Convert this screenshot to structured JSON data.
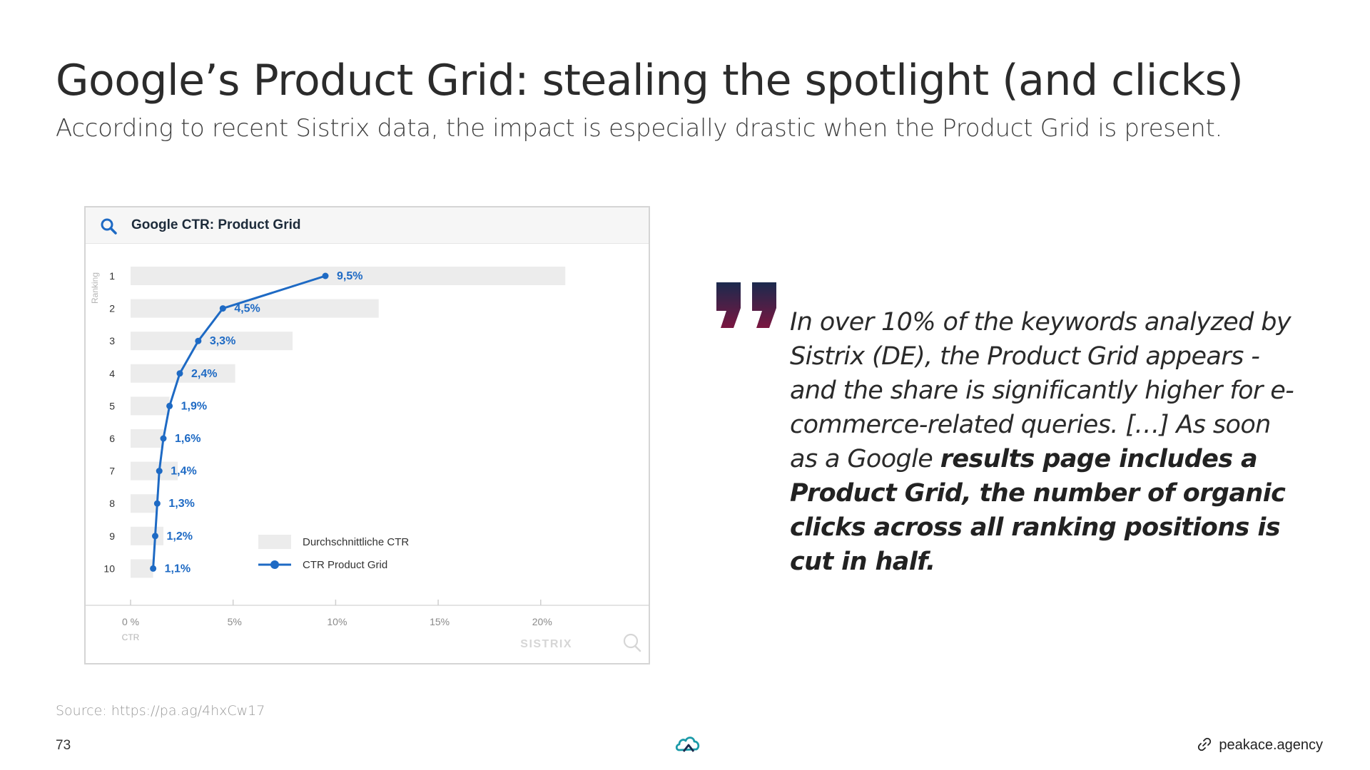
{
  "slide": {
    "title": "Google’s Product Grid: stealing the spotlight (and clicks)",
    "subtitle": "According to recent Sistrix data, the impact is especially drastic when the Product Grid is present.",
    "source": "Source: https://pa.ag/4hxCw17",
    "page_number": "73",
    "footer_link": "peakace.agency"
  },
  "quote": {
    "normal": "In over 10% of the keywords analyzed by Sistrix (DE), the Product Grid appears - and the share is significantly higher for e-commerce-related queries. […] As soon as a Google ",
    "bold": "results page includes a Product Grid, the number of organic clicks across all ranking positions is cut in half."
  },
  "colors": {
    "accent_blue": "#1e6ac4",
    "bar_gray": "#ececec",
    "quote_mark_top": "#1b2a4e",
    "quote_mark_bottom": "#7a1640"
  },
  "icons": {
    "card_header": "search-icon",
    "watermark": "search-icon",
    "footer_logo": "cloud-logo-icon",
    "footer_link": "link-icon"
  },
  "chart_data": {
    "type": "bar",
    "title": "Google CTR: Product Grid",
    "ylabel": "Ranking",
    "xlabel": "CTR",
    "orientation": "horizontal",
    "categories": [
      "1",
      "2",
      "3",
      "4",
      "5",
      "6",
      "7",
      "8",
      "9",
      "10"
    ],
    "xlim": [
      0,
      23
    ],
    "x_ticks": [
      0,
      5,
      10,
      15,
      20
    ],
    "x_tick_labels": [
      "0 %",
      "5%",
      "10%",
      "15%",
      "20%"
    ],
    "series": [
      {
        "name": "Durchschnittliche CTR",
        "type": "bar",
        "values": [
          21.2,
          12.1,
          7.9,
          5.1,
          1.9,
          1.6,
          2.3,
          1.3,
          1.6,
          1.1
        ]
      },
      {
        "name": "CTR Product Grid",
        "type": "line",
        "values": [
          9.5,
          4.5,
          3.3,
          2.4,
          1.9,
          1.6,
          1.4,
          1.3,
          1.2,
          1.1
        ],
        "labels": [
          "9,5%",
          "4,5%",
          "3,3%",
          "2,4%",
          "1,9%",
          "1,6%",
          "1,4%",
          "1,3%",
          "1,2%",
          "1,1%"
        ]
      }
    ],
    "legend_position": "bottom-right",
    "watermark": "SISTRIX",
    "grid": false
  }
}
